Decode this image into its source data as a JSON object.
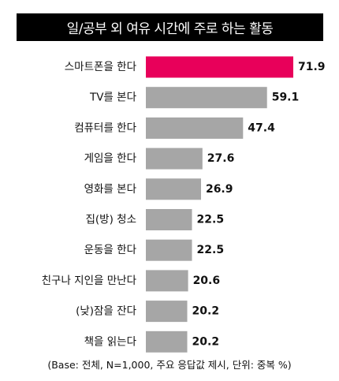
{
  "title": "일/공부 외 여유 시간에 주로 하는 활동",
  "footnote": "(Base: 전체, N=1,000, 주요 응답값 제시, 단위: 중복 %)",
  "colors": {
    "highlight": "#e8005a",
    "bar": "#a6a6a6",
    "title_bg": "#000000",
    "title_text": "#ffffff"
  },
  "chart_data": {
    "type": "bar",
    "orientation": "horizontal",
    "title": "일/공부 외 여유 시간에 주로 하는 활동",
    "unit": "중복 %",
    "categories": [
      "스마트폰을 한다",
      "TV를 본다",
      "컴퓨터를 한다",
      "게임을 한다",
      "영화를 본다",
      "집(방) 청소",
      "운동을 한다",
      "친구나 지인을 만난다",
      "(낮)잠을 잔다",
      "책을 읽는다"
    ],
    "values": [
      71.9,
      59.1,
      47.4,
      27.6,
      26.9,
      22.5,
      22.5,
      20.6,
      20.2,
      20.2
    ],
    "value_labels": [
      "71.9",
      "59.1",
      "47.4",
      "27.6",
      "26.9",
      "22.5",
      "22.5",
      "20.6",
      "20.2",
      "20.2"
    ],
    "highlight_index": 0,
    "xlim": [
      0,
      80
    ]
  }
}
